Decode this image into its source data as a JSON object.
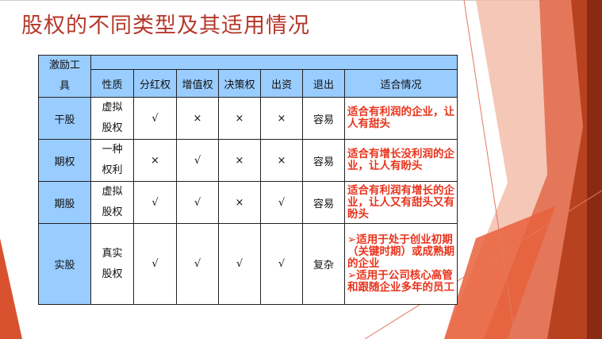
{
  "title": "股权的不同类型及其适用情况",
  "colors": {
    "title": "#b5372a",
    "header_bg": "#99ccff",
    "fit_text": "#e8331c",
    "accent": "#d9522f"
  },
  "table": {
    "corner": "激励工具",
    "headers": [
      "性质",
      "分红权",
      "增值权",
      "决策权",
      "出资",
      "退出",
      "适合情况"
    ],
    "rows": [
      {
        "name": "干股",
        "nature": [
          "虚拟",
          "股权"
        ],
        "dividend": "√",
        "appreciation": "×",
        "decision": "×",
        "capital": "×",
        "exit": "容易",
        "fit": [
          "适合有利润的企业，让人有甜头"
        ]
      },
      {
        "name": "期权",
        "nature": [
          "一种",
          "权利"
        ],
        "dividend": "×",
        "appreciation": "√",
        "decision": "×",
        "capital": "×",
        "exit": "容易",
        "fit": [
          "适合有增长没利润的企业，让人有盼头"
        ]
      },
      {
        "name": "期股",
        "nature": [
          "虚拟",
          "股权"
        ],
        "dividend": "√",
        "appreciation": "√",
        "decision": "×",
        "capital": "√",
        "exit": "容易",
        "fit": [
          "适合有利润有增长的企业，让人又有甜头又有盼头"
        ]
      },
      {
        "name": "实股",
        "nature": [
          "真实",
          "股权"
        ],
        "dividend": "√",
        "appreciation": "√",
        "decision": "√",
        "capital": "√",
        "exit": "复杂",
        "fit": [
          "➢适用于处于创业初期（关键时期）或成熟期的企业",
          "➢适用于公司核心高管和跟随企业多年的员工"
        ]
      }
    ]
  }
}
